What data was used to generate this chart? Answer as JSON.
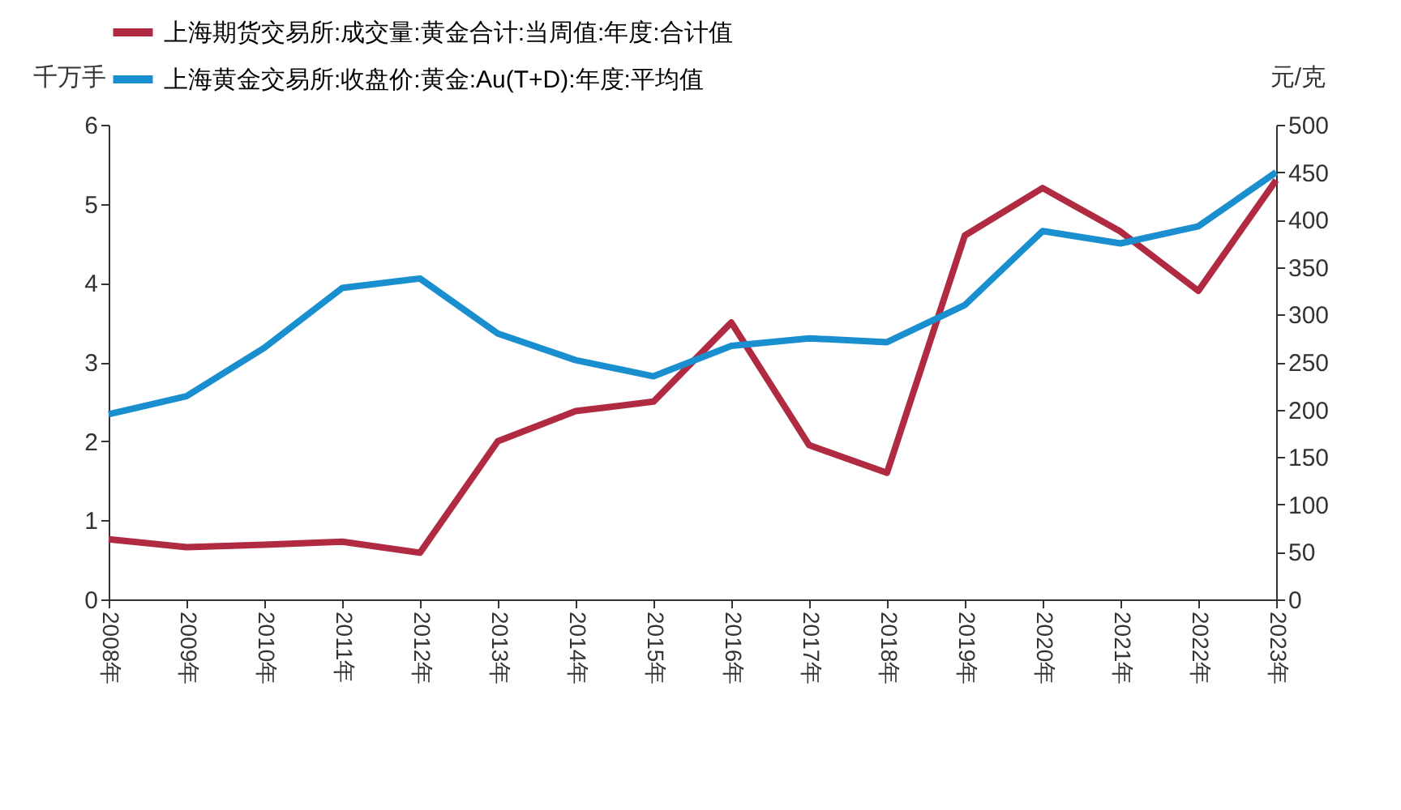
{
  "chart_data": {
    "type": "line",
    "categories": [
      "2008年",
      "2009年",
      "2010年",
      "2011年",
      "2012年",
      "2013年",
      "2014年",
      "2015年",
      "2016年",
      "2017年",
      "2018年",
      "2019年",
      "2020年",
      "2021年",
      "2022年",
      "2023年"
    ],
    "ylabel": "千万手",
    "y2label": "元/克",
    "ylim": [
      0,
      6
    ],
    "yticks": [
      0,
      1,
      2,
      3,
      4,
      5,
      6
    ],
    "y2lim": [
      0,
      500
    ],
    "y2ticks": [
      0,
      50,
      100,
      150,
      200,
      250,
      300,
      350,
      400,
      450,
      500
    ],
    "grid": false,
    "legend": "top",
    "marker": "none",
    "line_style": "solid",
    "series": [
      {
        "name": "上海期货交易所:成交量:黄金合计:当周值:年度:合计值",
        "color": "#b02a41",
        "values": [
          0.76,
          0.66,
          0.69,
          0.73,
          0.59,
          2.0,
          2.38,
          2.5,
          3.5,
          1.95,
          1.6,
          4.6,
          5.2,
          4.65,
          3.9,
          5.3
        ]
      },
      {
        "name": "上海黄金交易所:收盘价:黄金:Au(T+D):年度:平均值",
        "color": "#1a8fd0",
        "axis": "y2",
        "values": [
          195,
          214,
          265,
          328,
          338,
          280,
          252,
          235,
          267,
          275,
          271,
          310,
          388,
          375,
          393,
          450
        ]
      }
    ]
  }
}
